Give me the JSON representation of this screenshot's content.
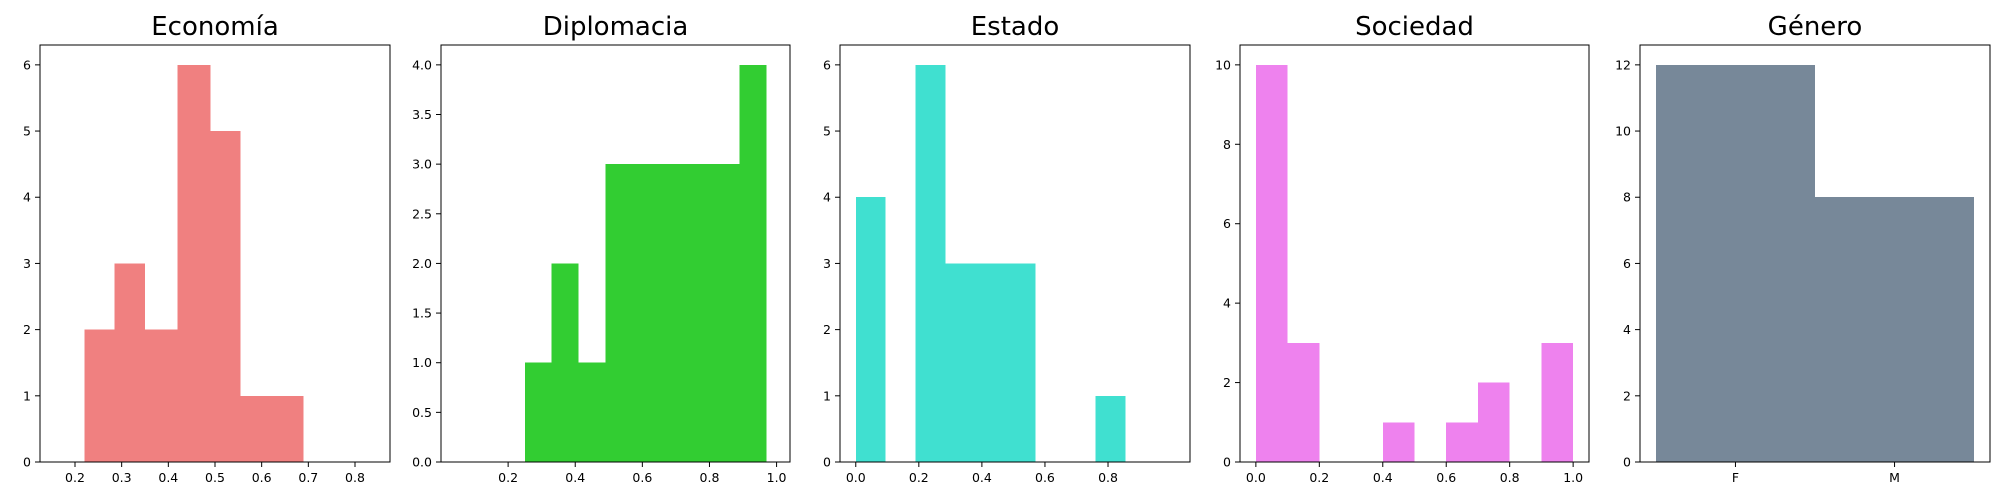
{
  "chart_data": [
    {
      "type": "bar",
      "title": "Economía",
      "color": "#f08080",
      "bins": [
        {
          "x0": 0.22,
          "x1": 0.285,
          "value": 2
        },
        {
          "x0": 0.285,
          "x1": 0.35,
          "value": 3
        },
        {
          "x0": 0.35,
          "x1": 0.42,
          "value": 2
        },
        {
          "x0": 0.42,
          "x1": 0.49,
          "value": 6
        },
        {
          "x0": 0.49,
          "x1": 0.555,
          "value": 5
        },
        {
          "x0": 0.555,
          "x1": 0.62,
          "value": 1
        },
        {
          "x0": 0.62,
          "x1": 0.69,
          "value": 1
        }
      ],
      "xlim": [
        0.125,
        0.875
      ],
      "ylim": [
        0,
        6.3
      ],
      "xticks": [
        0.2,
        0.3,
        0.4,
        0.5,
        0.6,
        0.7,
        0.8
      ],
      "xtick_labels": [
        "0.2",
        "0.3",
        "0.4",
        "0.5",
        "0.6",
        "0.7",
        "0.8"
      ],
      "yticks": [
        0,
        1,
        2,
        3,
        4,
        5,
        6
      ],
      "ytick_labels": [
        "0",
        "1",
        "2",
        "3",
        "4",
        "5",
        "6"
      ]
    },
    {
      "type": "bar",
      "title": "Diplomacia",
      "color": "#32cd32",
      "bins": [
        {
          "x0": 0.25,
          "x1": 0.33,
          "value": 1
        },
        {
          "x0": 0.33,
          "x1": 0.41,
          "value": 2
        },
        {
          "x0": 0.41,
          "x1": 0.49,
          "value": 1
        },
        {
          "x0": 0.49,
          "x1": 0.57,
          "value": 3
        },
        {
          "x0": 0.57,
          "x1": 0.65,
          "value": 3
        },
        {
          "x0": 0.65,
          "x1": 0.73,
          "value": 3
        },
        {
          "x0": 0.73,
          "x1": 0.81,
          "value": 3
        },
        {
          "x0": 0.81,
          "x1": 0.89,
          "value": 3
        },
        {
          "x0": 0.89,
          "x1": 0.97,
          "value": 4
        }
      ],
      "xlim": [
        0.0,
        1.04
      ],
      "ylim": [
        0,
        4.2
      ],
      "xticks": [
        0.2,
        0.4,
        0.6,
        0.8,
        1.0
      ],
      "xtick_labels": [
        "0.2",
        "0.4",
        "0.6",
        "0.8",
        "1.0"
      ],
      "yticks": [
        0,
        0.5,
        1,
        1.5,
        2,
        2.5,
        3,
        3.5,
        4
      ],
      "ytick_labels": [
        "0.0",
        "0.5",
        "1.0",
        "1.5",
        "2.0",
        "2.5",
        "3.0",
        "3.5",
        "4.0"
      ]
    },
    {
      "type": "bar",
      "title": "Estado",
      "color": "#40e0d0",
      "bins": [
        {
          "x0": 0.0,
          "x1": 0.095,
          "value": 4
        },
        {
          "x0": 0.19,
          "x1": 0.285,
          "value": 6
        },
        {
          "x0": 0.285,
          "x1": 0.38,
          "value": 3
        },
        {
          "x0": 0.38,
          "x1": 0.475,
          "value": 3
        },
        {
          "x0": 0.475,
          "x1": 0.57,
          "value": 3
        },
        {
          "x0": 0.76,
          "x1": 0.855,
          "value": 1
        }
      ],
      "xlim": [
        -0.05,
        1.06
      ],
      "ylim": [
        0,
        6.3
      ],
      "xticks": [
        0.0,
        0.2,
        0.4,
        0.6,
        0.8
      ],
      "xtick_labels": [
        "0.0",
        "0.2",
        "0.4",
        "0.6",
        "0.8"
      ],
      "yticks": [
        0,
        1,
        2,
        3,
        4,
        5,
        6
      ],
      "ytick_labels": [
        "0",
        "1",
        "2",
        "3",
        "4",
        "5",
        "6"
      ]
    },
    {
      "type": "bar",
      "title": "Sociedad",
      "color": "#ee82ee",
      "bins": [
        {
          "x0": 0.0,
          "x1": 0.1,
          "value": 10
        },
        {
          "x0": 0.1,
          "x1": 0.2,
          "value": 3
        },
        {
          "x0": 0.4,
          "x1": 0.5,
          "value": 1
        },
        {
          "x0": 0.6,
          "x1": 0.7,
          "value": 1
        },
        {
          "x0": 0.7,
          "x1": 0.8,
          "value": 2
        },
        {
          "x0": 0.9,
          "x1": 1.0,
          "value": 3
        }
      ],
      "xlim": [
        -0.05,
        1.05
      ],
      "ylim": [
        0,
        10.5
      ],
      "xticks": [
        0.0,
        0.2,
        0.4,
        0.6,
        0.8,
        1.0
      ],
      "xtick_labels": [
        "0.0",
        "0.2",
        "0.4",
        "0.6",
        "0.8",
        "1.0"
      ],
      "yticks": [
        0,
        2,
        4,
        6,
        8,
        10
      ],
      "ytick_labels": [
        "0",
        "2",
        "4",
        "6",
        "8",
        "10"
      ]
    },
    {
      "type": "bar",
      "title": "Género",
      "color": "#778899",
      "bins": [
        {
          "x0": 0.0,
          "x1": 0.5,
          "value": 12
        },
        {
          "x0": 0.5,
          "x1": 1.0,
          "value": 8
        }
      ],
      "xlim": [
        -0.05,
        1.05
      ],
      "ylim": [
        0,
        12.6
      ],
      "xticks": [
        0.25,
        0.75
      ],
      "xtick_labels": [
        "F",
        "M"
      ],
      "yticks": [
        0,
        2,
        4,
        6,
        8,
        10,
        12
      ],
      "ytick_labels": [
        "0",
        "2",
        "4",
        "6",
        "8",
        "10",
        "12"
      ]
    }
  ]
}
